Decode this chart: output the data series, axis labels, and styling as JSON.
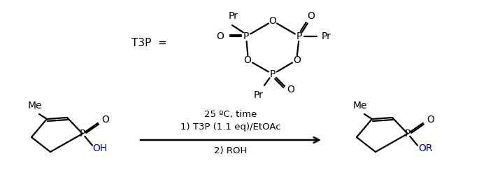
{
  "bg_color": "#ffffff",
  "text_color": "#000000",
  "blue_color": "#0000cd",
  "figsize": [
    6.85,
    2.5
  ],
  "dpi": 100,
  "condition_line1": "25 ºC, time",
  "condition_line2": "1) T3P (1.1 eq)/EtOAc",
  "condition_line3": "2) ROH"
}
